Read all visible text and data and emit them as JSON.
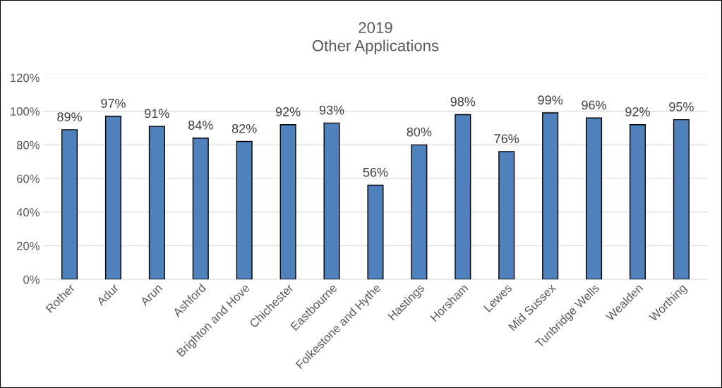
{
  "chart_data": {
    "type": "bar",
    "title": "2019\nOther Applications",
    "categories": [
      "Rother",
      "Adur",
      "Arun",
      "Ashford",
      "Brighton and Hove",
      "Chichester",
      "Eastbourne",
      "Folkestone and Hythe",
      "Hastings",
      "Horsham",
      "Lewes",
      "Mid Sussex",
      "Tunbridge Wells",
      "Wealden",
      "Worthing"
    ],
    "values": [
      89,
      97,
      91,
      84,
      82,
      92,
      93,
      56,
      80,
      98,
      76,
      99,
      96,
      92,
      95
    ],
    "value_labels": [
      "89%",
      "97%",
      "91%",
      "84%",
      "82%",
      "92%",
      "93%",
      "56%",
      "80%",
      "98%",
      "76%",
      "99%",
      "96%",
      "92%",
      "95%"
    ],
    "color": "#4f81bd",
    "ylim": [
      0,
      120
    ],
    "yticks": [
      {
        "value": 0,
        "label": "0%"
      },
      {
        "value": 20,
        "label": "20%"
      },
      {
        "value": 40,
        "label": "40%"
      },
      {
        "value": 60,
        "label": "60%"
      },
      {
        "value": 80,
        "label": "80%"
      },
      {
        "value": 100,
        "label": "100%"
      },
      {
        "value": 120,
        "label": "120%"
      }
    ],
    "grid": "y"
  }
}
